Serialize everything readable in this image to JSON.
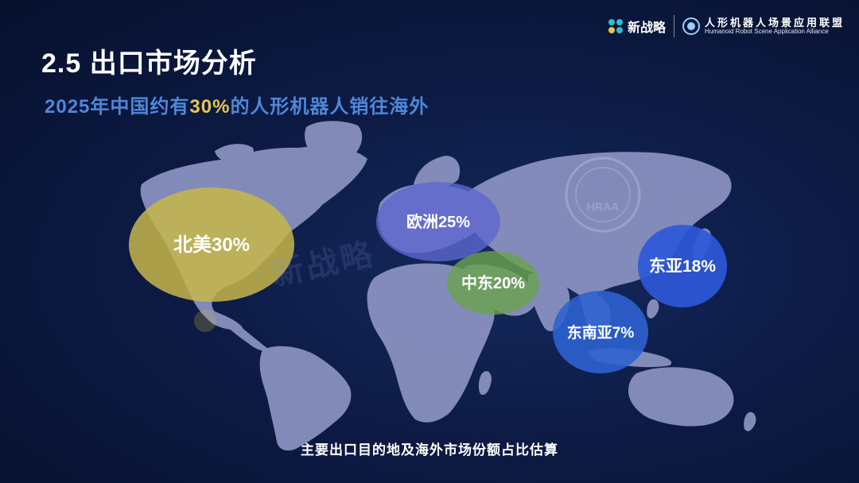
{
  "header": {
    "title": "2.5 出口市场分析",
    "subtitle_pre": "2025年中国约有",
    "subtitle_highlight": "30%",
    "subtitle_post": "的人形机器人销往海外"
  },
  "brand": {
    "logo1_text": "新战略",
    "logo2_cn": "人形机器人场景应用联盟",
    "logo2_en": "Humanoid Robot Scene Application Alliance"
  },
  "watermark": {
    "text": "新战略",
    "seal_text": "HRAA"
  },
  "caption": "主要出口目的地及海外市场份额占比估算",
  "colors": {
    "title_blue": "#4f86d8",
    "highlight_gold": "#e7c64c",
    "land": "#8c94c2"
  },
  "chart_data": {
    "type": "bubble-map",
    "title": "主要出口目的地及海外市场份额占比估算",
    "unit": "%",
    "regions": [
      {
        "name": "北美",
        "label": "北美30%",
        "value": 30,
        "color": "#c8b64a"
      },
      {
        "name": "欧洲",
        "label": "欧洲25%",
        "value": 25,
        "color": "#5e68cf"
      },
      {
        "name": "中东",
        "label": "中东20%",
        "value": 20,
        "color": "#6aa24e"
      },
      {
        "name": "东亚",
        "label": "东亚18%",
        "value": 18,
        "color": "#2c58d8"
      },
      {
        "name": "东南亚",
        "label": "东南亚7%",
        "value": 7,
        "color": "#2d62d0"
      }
    ]
  }
}
